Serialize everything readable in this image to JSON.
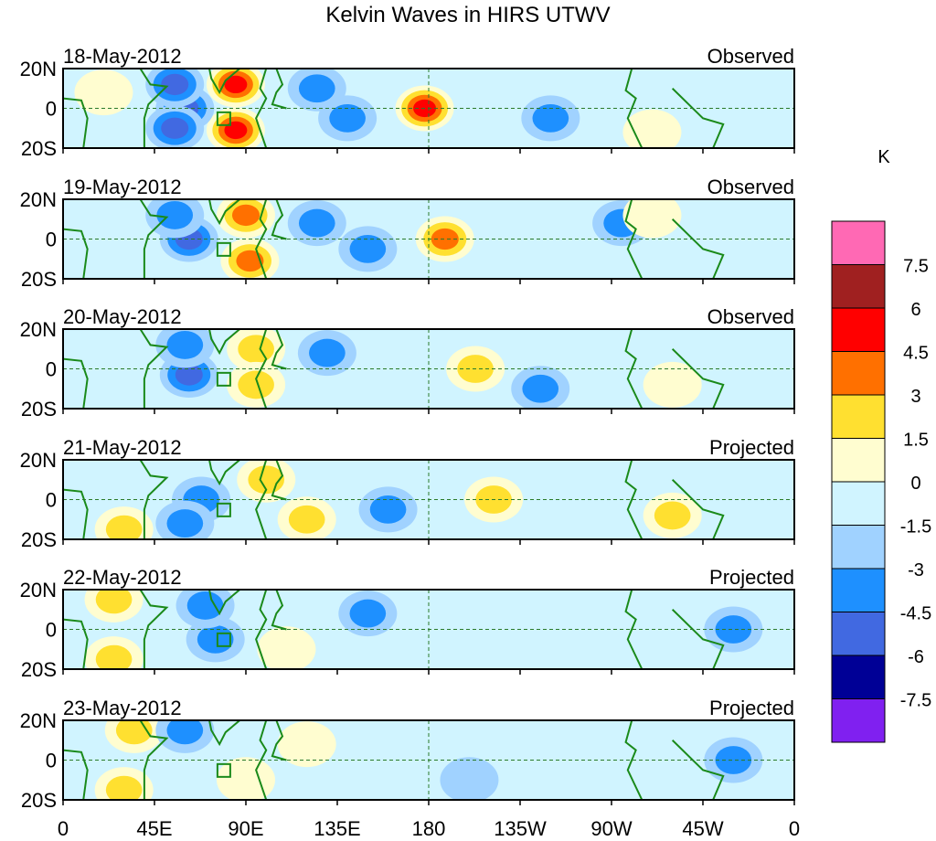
{
  "chart_data": {
    "type": "heatmap",
    "title": "Kelvin Waves in HIRS UTWV",
    "units": "K",
    "x_ticks": [
      "0",
      "45E",
      "90E",
      "135E",
      "180",
      "135W",
      "90W",
      "45W",
      "0"
    ],
    "y_ticks": [
      "20N",
      "0",
      "20S"
    ],
    "xlim_deg_east": [
      0,
      360
    ],
    "ylim_deg": [
      -20,
      20
    ],
    "levels": [
      "-7.5",
      "-6",
      "-4.5",
      "-3",
      "-1.5",
      "0",
      "1.5",
      "3",
      "4.5",
      "6",
      "7.5"
    ],
    "colors": [
      "#8020f0",
      "#000096",
      "#4169e1",
      "#1e90ff",
      "#a0d2ff",
      "#d0f4ff",
      "#fffdd0",
      "#ffe030",
      "#ff7000",
      "#ff0000",
      "#a02020",
      "#ff69b4"
    ],
    "panels": [
      {
        "date": "18-May-2012",
        "type": "Observed",
        "anomalies": [
          {
            "lon": 85,
            "lat": 12,
            "value": 5
          },
          {
            "lon": 85,
            "lat": -11,
            "value": 5
          },
          {
            "lon": 178,
            "lat": 0,
            "value": 5
          },
          {
            "lon": 60,
            "lat": 0,
            "value": -3.5
          },
          {
            "lon": 55,
            "lat": -10,
            "value": -3.5
          },
          {
            "lon": 55,
            "lat": 12,
            "value": -3.5
          },
          {
            "lon": 125,
            "lat": 10,
            "value": -2
          },
          {
            "lon": 140,
            "lat": -5,
            "value": -2
          },
          {
            "lon": 20,
            "lat": 8,
            "value": 1
          },
          {
            "lon": 240,
            "lat": -5,
            "value": -2
          },
          {
            "lon": 290,
            "lat": -12,
            "value": 1
          }
        ]
      },
      {
        "date": "19-May-2012",
        "type": "Observed",
        "anomalies": [
          {
            "lon": 90,
            "lat": 12,
            "value": 4
          },
          {
            "lon": 92,
            "lat": -11,
            "value": 4
          },
          {
            "lon": 188,
            "lat": 0,
            "value": 4
          },
          {
            "lon": 62,
            "lat": 0,
            "value": -3.5
          },
          {
            "lon": 55,
            "lat": 12,
            "value": -3
          },
          {
            "lon": 125,
            "lat": 8,
            "value": -2
          },
          {
            "lon": 150,
            "lat": -5,
            "value": -2
          },
          {
            "lon": 275,
            "lat": 8,
            "value": -2
          },
          {
            "lon": 290,
            "lat": 12,
            "value": 1
          }
        ]
      },
      {
        "date": "20-May-2012",
        "type": "Observed",
        "anomalies": [
          {
            "lon": 95,
            "lat": 10,
            "value": 2
          },
          {
            "lon": 95,
            "lat": -8,
            "value": 2
          },
          {
            "lon": 203,
            "lat": 0,
            "value": 2
          },
          {
            "lon": 62,
            "lat": -3,
            "value": -3.5
          },
          {
            "lon": 60,
            "lat": 12,
            "value": -2
          },
          {
            "lon": 130,
            "lat": 8,
            "value": -2
          },
          {
            "lon": 235,
            "lat": -10,
            "value": -2
          },
          {
            "lon": 300,
            "lat": -8,
            "value": 1.5
          }
        ]
      },
      {
        "date": "21-May-2012",
        "type": "Projected",
        "anomalies": [
          {
            "lon": 100,
            "lat": 10,
            "value": 2
          },
          {
            "lon": 120,
            "lat": -10,
            "value": 2
          },
          {
            "lon": 212,
            "lat": 0,
            "value": 2
          },
          {
            "lon": 68,
            "lat": 0,
            "value": -2
          },
          {
            "lon": 60,
            "lat": -12,
            "value": -2
          },
          {
            "lon": 160,
            "lat": -5,
            "value": -2
          },
          {
            "lon": 30,
            "lat": -15,
            "value": 2
          },
          {
            "lon": 300,
            "lat": -8,
            "value": 2
          }
        ]
      },
      {
        "date": "22-May-2012",
        "type": "Projected",
        "anomalies": [
          {
            "lon": 25,
            "lat": 15,
            "value": 2
          },
          {
            "lon": 25,
            "lat": -15,
            "value": 2
          },
          {
            "lon": 75,
            "lat": -5,
            "value": -2
          },
          {
            "lon": 70,
            "lat": 12,
            "value": -2
          },
          {
            "lon": 150,
            "lat": 8,
            "value": -2
          },
          {
            "lon": 110,
            "lat": -10,
            "value": 1
          },
          {
            "lon": 330,
            "lat": 0,
            "value": -2
          }
        ]
      },
      {
        "date": "23-May-2012",
        "type": "Projected",
        "anomalies": [
          {
            "lon": 30,
            "lat": -15,
            "value": 2
          },
          {
            "lon": 35,
            "lat": 15,
            "value": 2
          },
          {
            "lon": 60,
            "lat": 15,
            "value": -2
          },
          {
            "lon": 90,
            "lat": -10,
            "value": 1
          },
          {
            "lon": 120,
            "lat": 8,
            "value": 1
          },
          {
            "lon": 330,
            "lat": 0,
            "value": -2
          },
          {
            "lon": 200,
            "lat": -10,
            "value": -1
          }
        ]
      }
    ]
  }
}
